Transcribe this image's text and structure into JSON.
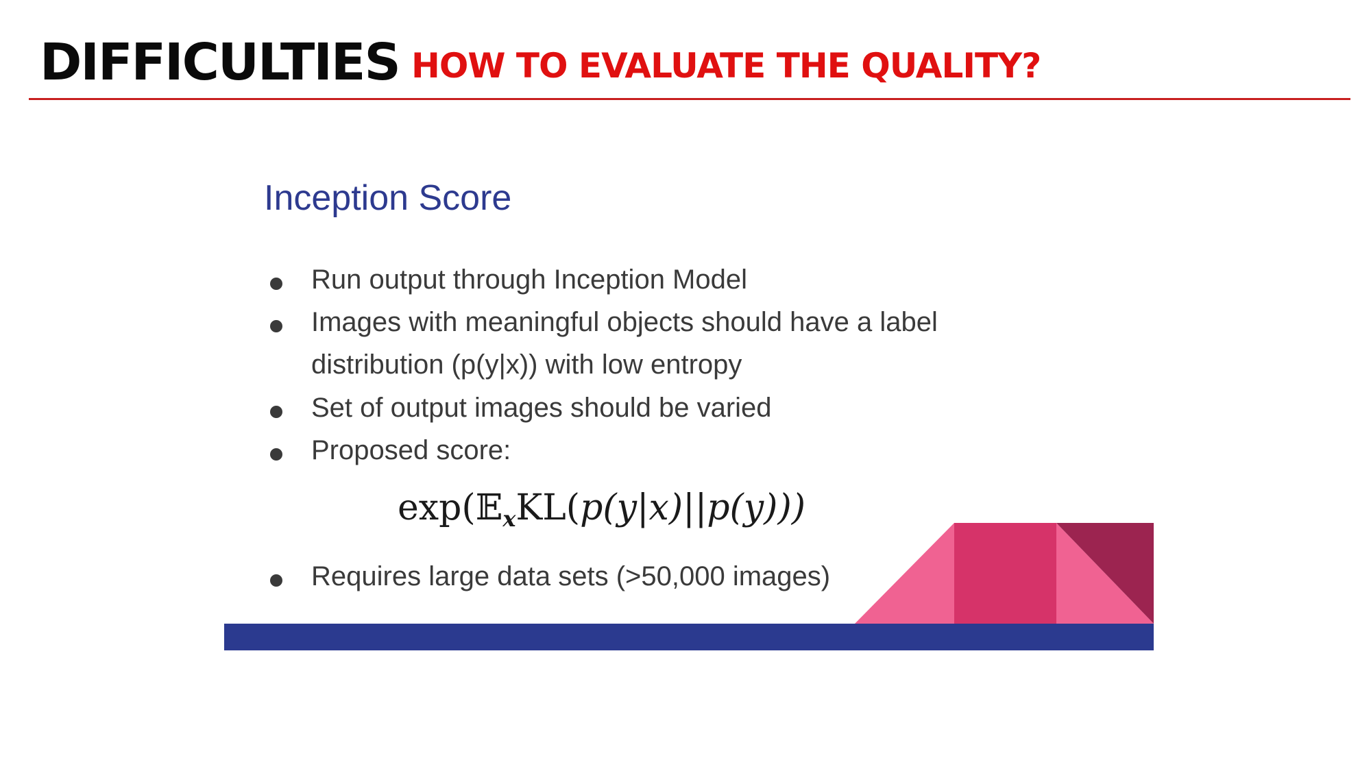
{
  "header": {
    "title": "DIFFICULTIES",
    "subtitle": "HOW TO EVALUATE THE QUALITY?"
  },
  "slide": {
    "heading": "Inception Score",
    "bullets": [
      "Run output through Inception Model",
      "Images with meaningful objects should have a label",
      "distribution (p(y|x)) with low entropy",
      "Set of output images should be varied",
      "Proposed score:",
      "Requires large data sets (>50,000 images)"
    ],
    "formula": {
      "exp": "exp(",
      "expectation": "𝔼",
      "expectation_sub": "x",
      "kl": "KL(",
      "p1": "p",
      "mid": "(y|x)||",
      "p2": "p",
      "end": "(y)))"
    }
  },
  "colors": {
    "accent_red": "#e01010",
    "heading_blue": "#2d3a8f",
    "bar_blue": "#2b3a8f",
    "pink_light": "#f06292",
    "pink_dark": "#d63369",
    "maroon": "#9c2450"
  }
}
